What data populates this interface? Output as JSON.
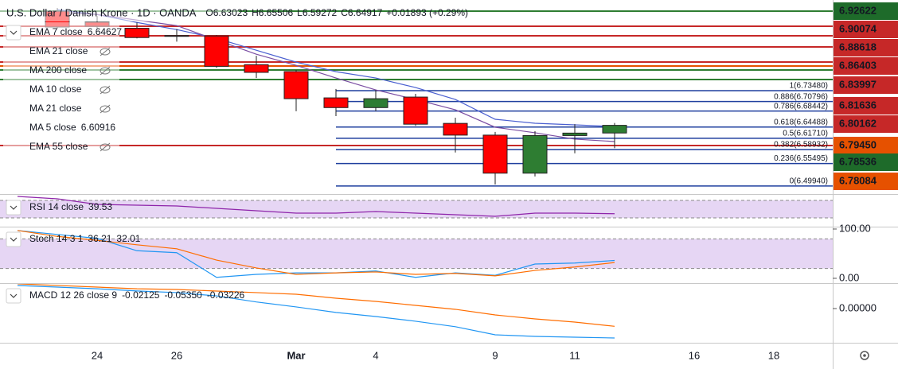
{
  "header": {
    "title": "U.S. Dollar / Danish Krone · 1D · OANDA",
    "quote": [
      "O6.63023",
      "H6.65506",
      "L6.59272",
      "C6.64917",
      "+0.01893 (+0.29%)"
    ],
    "quote_color": "#1e8a3c"
  },
  "chart_data": [
    {
      "type": "candlestick",
      "categories": [
        null,
        null,
        "24",
        null,
        "26",
        null,
        null,
        "Mar",
        null,
        "4",
        null,
        null,
        "9",
        null,
        "11",
        null,
        null,
        "16",
        null,
        "18"
      ],
      "open": [
        null,
        6.931,
        6.904,
        6.889,
        6.871,
        6.87,
        6.799,
        6.782,
        6.717,
        6.693,
        6.719,
        6.654,
        6.625,
        6.531,
        6.624,
        6.63023,
        null,
        null,
        null,
        null
      ],
      "high": [
        null,
        6.939,
        6.919,
        6.903,
        6.887,
        6.872,
        6.821,
        6.786,
        6.739,
        6.736,
        6.727,
        6.668,
        6.633,
        6.635,
        6.652,
        6.65506,
        null,
        null,
        null,
        null
      ],
      "low": [
        null,
        6.888,
        6.889,
        6.864,
        6.856,
        6.791,
        6.766,
        6.684,
        6.672,
        6.684,
        6.648,
        6.582,
        6.503,
        6.523,
        6.58,
        6.59272,
        null,
        null,
        null,
        null
      ],
      "close": [
        null,
        6.892,
        6.894,
        6.866,
        6.869,
        6.795,
        6.78,
        6.715,
        6.693,
        6.715,
        6.652,
        6.625,
        6.531,
        6.624,
        6.63,
        6.64917,
        null,
        null,
        null,
        null
      ],
      "up_color": "#2e7d32",
      "down_color": "#ff0000",
      "ylim": [
        6.4814,
        6.9588
      ],
      "series": [
        {
          "name": "EMA 7 close",
          "last": "6.64627",
          "color": "#4a5fd0",
          "values": [
            null,
            6.9347,
            6.9229,
            6.9033,
            6.8857,
            6.8641,
            6.8347,
            6.8053,
            6.7817,
            6.7661,
            6.7425,
            6.7131,
            6.6641,
            6.6543,
            6.6504,
            6.64627,
            null,
            null,
            null,
            null
          ]
        },
        {
          "name": "EMA 21 close",
          "visible": false
        },
        {
          "name": "MA 200 close",
          "visible": false
        },
        {
          "name": "MA 10 close",
          "visible": false
        },
        {
          "name": "MA 21 close",
          "visible": false
        },
        {
          "name": "MA 5 close",
          "last": "6.60916",
          "color": "#7b4ea3",
          "values": [
            null,
            6.9288,
            6.9229,
            6.9092,
            6.8955,
            6.8602,
            6.8249,
            6.7974,
            6.7661,
            6.7366,
            6.7131,
            6.6876,
            6.6445,
            6.6308,
            6.6151,
            6.60916,
            null,
            null,
            null,
            null
          ]
        },
        {
          "name": "EMA 55 close",
          "visible": false
        }
      ],
      "fib": [
        {
          "value": 6.7348,
          "label": "1(6.73480)"
        },
        {
          "value": 6.70796,
          "label": "0.886(6.70796)"
        },
        {
          "value": 6.68442,
          "label": "0.786(6.68442)"
        },
        {
          "value": 6.64488,
          "label": "0.618(6.64488)"
        },
        {
          "value": 6.6171,
          "label": "0.5(6.61710)"
        },
        {
          "value": 6.58932,
          "label": "0.382(6.58932)"
        },
        {
          "value": 6.55495,
          "label": "0.236(6.55495)"
        },
        {
          "value": 6.4994,
          "label": "0(6.49940)"
        }
      ],
      "fib_color": "#1f3f9e",
      "price_labels": [
        {
          "label": "6.92622",
          "color": "#1e6b2a"
        },
        {
          "label": "6.90074",
          "color": "#c62828"
        },
        {
          "label": "6.88618",
          "color": "#c62828"
        },
        {
          "label": "6.86403",
          "color": "#c62828"
        },
        {
          "label": "6.83997",
          "color": "#c62828"
        },
        {
          "label": "6.81636",
          "color": "#c62828"
        },
        {
          "label": "6.80162",
          "color": "#c62828"
        },
        {
          "label": "6.79450",
          "color": "#e65100"
        },
        {
          "label": "6.78536",
          "color": "#1e6b2a"
        },
        {
          "label": "6.78084",
          "color": "#e65100"
        }
      ]
    },
    {
      "type": "line",
      "name": "RSI 14 close",
      "ylim": [
        13.6,
        80.9
      ],
      "band": [
        30,
        70
      ],
      "band_color": "#dcc4f0",
      "series": [
        {
          "last": "39.53",
          "color": "#8e24aa",
          "values": [
            79.1,
            73.6,
            60.9,
            59.1,
            57.3,
            51.8,
            46.4,
            40.9,
            40.9,
            44.5,
            40.9,
            37.3,
            33.6,
            40.9,
            40.9,
            39.53,
            null,
            null,
            null,
            null
          ]
        }
      ]
    },
    {
      "type": "line",
      "name": "Stoch 14 3 1",
      "ylim": [
        -8.1,
        103.2
      ],
      "band": [
        20,
        80
      ],
      "band_color": "#dcc4f0",
      "yticks": [
        {
          "value": 100,
          "label": "100.00"
        },
        {
          "value": 0,
          "label": "0.00"
        }
      ],
      "series": [
        {
          "last": "36.21",
          "color": "#2196f3",
          "values": [
            97,
            89,
            81,
            56,
            52,
            2,
            8,
            11,
            11,
            15,
            2,
            11,
            6,
            29,
            31,
            36.21,
            null,
            null,
            null,
            null
          ]
        },
        {
          "last": "32.01",
          "color": "#ff6d00",
          "values": [
            97,
            85,
            77,
            68,
            60,
            37,
            21,
            8,
            11,
            13,
            8,
            10,
            5,
            16,
            23,
            32.01,
            null,
            null,
            null,
            null
          ]
        }
      ]
    },
    {
      "type": "line",
      "name": "MACD 12 26 close 9",
      "ylim": [
        -0.0607,
        0.0448
      ],
      "yticks": [
        {
          "value": 0,
          "label": "0.00000"
        }
      ],
      "series": [
        {
          "last": "-0.02125",
          "color": "#f4a6a6"
        },
        {
          "last": "-0.05350",
          "color": "#2196f3",
          "values": [
            0.0419,
            0.039,
            0.036,
            0.032,
            0.029,
            0.023,
            0.012,
            0.003,
            -0.007,
            -0.0145,
            -0.023,
            -0.033,
            -0.0477,
            -0.0506,
            -0.052,
            -0.0535,
            null,
            null,
            null,
            null
          ]
        },
        {
          "last": "-0.03226",
          "color": "#ff6d00",
          "values": [
            0.045,
            0.042,
            0.039,
            0.036,
            0.0347,
            0.0318,
            0.029,
            0.026,
            0.0188,
            0.013,
            0.0058,
            -0.0014,
            -0.0116,
            -0.0188,
            -0.0246,
            -0.03226,
            null,
            null,
            null,
            null
          ]
        }
      ]
    }
  ]
}
